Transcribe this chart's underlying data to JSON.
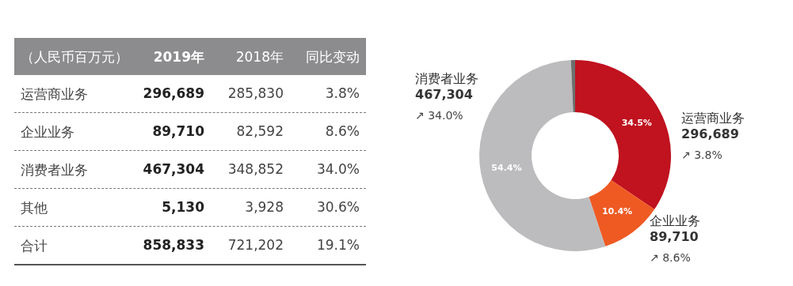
{
  "chart_data": [
    {
      "type": "other",
      "annotations": [
        "（人民币百万元）",
        "2019年",
        "2018年",
        "同比变动",
        "运营商业务",
        "296,689",
        "285,830",
        "3.8%",
        "企业业务",
        "89,710",
        "82,592",
        "8.6%",
        "消费者业务",
        "467,304",
        "348,852",
        "34.0%",
        "其他",
        "5,130",
        "3,928",
        "30.6%",
        "合计",
        "858,833",
        "721,202",
        "19.1%"
      ]
    },
    {
      "type": "donut",
      "categories": [
        "运营商业务",
        "企业业务",
        "消费者业务",
        null
      ],
      "values": [
        34.5,
        10.4,
        54.4,
        0.7
      ],
      "colors": [
        "#c0121f",
        "#ef5a23",
        "#bcbcbe",
        "#6e6e6e"
      ],
      "value_labels": [
        "34.5%",
        "10.4%",
        "54.4%",
        null
      ],
      "annotations": [
        "296,689",
        "↗ 3.8%",
        "89,710",
        "↗ 8.6%",
        "467,304",
        "↗ 34.0%"
      ]
    }
  ]
}
